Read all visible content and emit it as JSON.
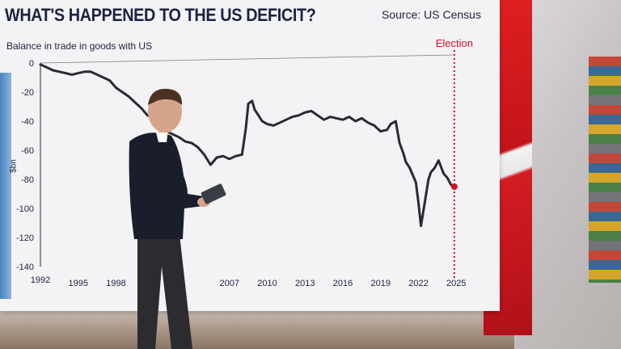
{
  "header": {
    "title": "WHAT'S HAPPENED TO THE US DEFICIT?",
    "source": "Source: US Census",
    "subtitle": "Balance in trade in goods with US"
  },
  "colors": {
    "line": "#2a2a30",
    "election": "#d0102a",
    "text": "#1c2340",
    "axis": "#2a2a30"
  },
  "chart_data": {
    "type": "line",
    "title": "WHAT'S HAPPENED TO THE US DEFICIT?",
    "subtitle": "Balance in trade in goods with US",
    "xlabel": "",
    "ylabel": "$bn",
    "xlim": [
      1992,
      2025.5
    ],
    "ylim": [
      -140,
      0
    ],
    "x_ticks": [
      1992,
      1995,
      1998,
      2001,
      2004,
      2007,
      2010,
      2013,
      2016,
      2019,
      2022,
      2025
    ],
    "x_tick_labels": [
      "1992",
      "1995",
      "1998",
      "",
      "",
      "2007",
      "2010",
      "2013",
      "2016",
      "2019",
      "2022",
      "2025"
    ],
    "y_ticks": [
      0,
      -20,
      -40,
      -60,
      -80,
      -100,
      -120,
      -140
    ],
    "grid": false,
    "annotations": [
      {
        "label": "Election",
        "x": 2024.85
      }
    ],
    "series": [
      {
        "x": [
          1992,
          1992.5,
          1993,
          1993.5,
          1994,
          1994.5,
          1995,
          1995.5,
          1996,
          1996.5,
          1997,
          1997.5,
          1998,
          1998.5,
          1999,
          1999.5,
          2000,
          2000.5,
          2001,
          2001.5,
          2002,
          2002.5,
          2003,
          2003.5,
          2004,
          2004.5,
          2005,
          2005.5,
          2006,
          2006.5,
          2007,
          2007.5,
          2008,
          2008.3,
          2008.5,
          2008.8,
          2009,
          2009.3,
          2009.6,
          2010,
          2010.5,
          2011,
          2011.5,
          2012,
          2012.5,
          2013,
          2013.5,
          2014,
          2014.5,
          2015,
          2015.5,
          2016,
          2016.5,
          2017,
          2017.5,
          2018,
          2018.5,
          2019,
          2019.5,
          2019.8,
          2020.2,
          2020.5,
          2020.8,
          2021,
          2021.3,
          2021.6,
          2021.8,
          2022,
          2022.2,
          2022.5,
          2022.8,
          2023,
          2023.3,
          2023.6,
          2024,
          2024.3,
          2024.6,
          2024.85
        ],
        "y": [
          -1,
          -3,
          -5,
          -6,
          -7,
          -8,
          -7,
          -6,
          -6,
          -8,
          -10,
          -12,
          -17,
          -20,
          -23,
          -27,
          -31,
          -36,
          -38,
          -44,
          -47,
          -49,
          -51,
          -54,
          -55,
          -58,
          -63,
          -70,
          -65,
          -64,
          -66,
          -64,
          -63,
          -45,
          -28,
          -26,
          -32,
          -36,
          -40,
          -42,
          -43,
          -41,
          -39,
          -37,
          -36,
          -34,
          -33,
          -36,
          -39,
          -37,
          -38,
          -39,
          -37,
          -40,
          -38,
          -41,
          -43,
          -47,
          -46,
          -42,
          -40,
          -55,
          -62,
          -68,
          -72,
          -78,
          -82,
          -96,
          -112,
          -96,
          -80,
          -75,
          -72,
          -67,
          -76,
          -79,
          -84,
          -85
        ]
      }
    ]
  }
}
